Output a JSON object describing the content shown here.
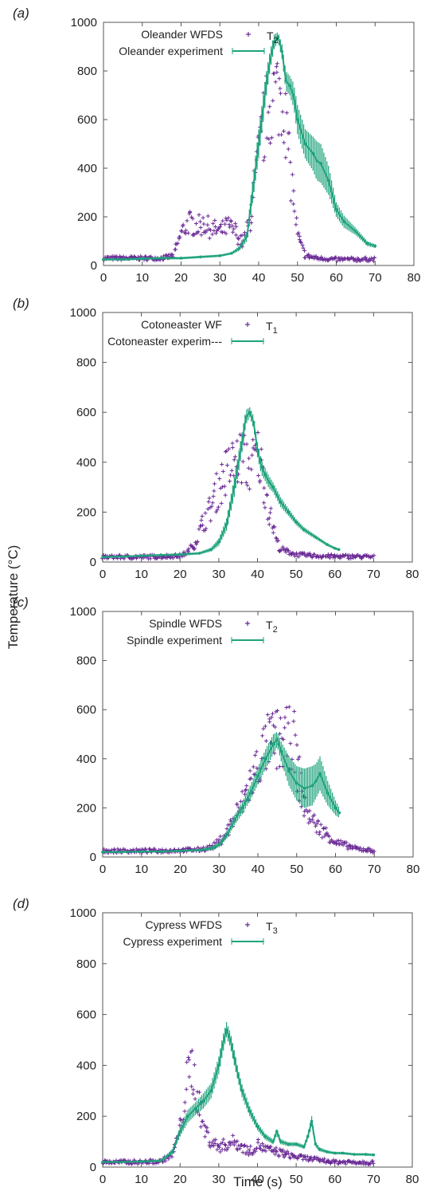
{
  "figure": {
    "ylabel": "Temperature (°C)",
    "xlabel": "Time (s)"
  },
  "colors": {
    "wfds": "#6b2a96",
    "experiment": "#1fa37c",
    "axis": "#555555"
  },
  "chart_data": [
    {
      "type": "scatter",
      "panel_label": "(a)",
      "sensor": "T",
      "sensor_sub": "2",
      "xlim": [
        0,
        80
      ],
      "ylim": [
        0,
        1000
      ],
      "xticks": [
        "0",
        "10",
        "20",
        "30",
        "40",
        "50",
        "60",
        "70",
        "80"
      ],
      "yticks": [
        "0",
        "200",
        "400",
        "600",
        "800",
        "1000"
      ],
      "series": [
        {
          "name": "Oleander WFDS",
          "style": "scatter",
          "x": [
            0,
            5,
            10,
            15,
            18,
            20,
            22,
            24,
            26,
            28,
            30,
            32,
            34,
            36,
            38,
            40,
            42,
            44,
            46,
            47,
            48,
            50,
            52,
            55,
            60,
            65,
            70
          ],
          "y": [
            30,
            30,
            30,
            30,
            40,
            130,
            180,
            160,
            170,
            150,
            140,
            160,
            140,
            90,
            200,
            450,
            620,
            710,
            710,
            600,
            420,
            120,
            40,
            30,
            25,
            25,
            25
          ]
        },
        {
          "name": "Oleander experiment",
          "style": "errorline",
          "x": [
            0,
            5,
            10,
            15,
            20,
            25,
            30,
            33,
            35,
            37,
            38,
            40,
            42,
            43,
            44,
            45,
            46,
            47,
            48,
            49,
            50,
            52,
            54,
            55,
            56,
            58,
            60,
            62,
            65,
            68,
            70
          ],
          "y": [
            25,
            25,
            28,
            30,
            30,
            35,
            40,
            50,
            70,
            120,
            250,
            500,
            750,
            850,
            920,
            940,
            880,
            760,
            740,
            700,
            600,
            500,
            460,
            430,
            420,
            350,
            230,
            180,
            140,
            90,
            80
          ],
          "err": [
            5,
            5,
            5,
            5,
            5,
            5,
            5,
            5,
            10,
            20,
            40,
            60,
            50,
            40,
            30,
            20,
            30,
            40,
            40,
            50,
            60,
            60,
            70,
            80,
            80,
            60,
            30,
            25,
            15,
            10,
            8
          ]
        }
      ]
    },
    {
      "type": "scatter",
      "panel_label": "(b)",
      "sensor": "T",
      "sensor_sub": "1",
      "xlim": [
        0,
        80
      ],
      "ylim": [
        0,
        1000
      ],
      "xticks": [
        "0",
        "10",
        "20",
        "30",
        "40",
        "50",
        "60",
        "70",
        "80"
      ],
      "yticks": [
        "0",
        "200",
        "400",
        "600",
        "800",
        "1000"
      ],
      "series": [
        {
          "name": "Cotoneaster WF",
          "style": "scatter",
          "x": [
            0,
            5,
            10,
            15,
            20,
            22,
            24,
            26,
            28,
            30,
            32,
            34,
            36,
            38,
            40,
            41,
            42,
            43,
            44,
            45,
            46,
            48,
            50,
            55,
            60,
            65,
            70
          ],
          "y": [
            20,
            20,
            20,
            22,
            25,
            40,
            80,
            160,
            220,
            300,
            360,
            400,
            420,
            380,
            430,
            370,
            300,
            200,
            150,
            80,
            50,
            40,
            30,
            25,
            22,
            22,
            20
          ]
        },
        {
          "name": "Cotoneaster experim---",
          "style": "errorline",
          "x": [
            0,
            5,
            10,
            15,
            20,
            25,
            28,
            30,
            32,
            34,
            36,
            37,
            38,
            39,
            40,
            41,
            42,
            43,
            44,
            45,
            46,
            48,
            50,
            52,
            55,
            58,
            60,
            61
          ],
          "y": [
            20,
            22,
            25,
            28,
            30,
            35,
            50,
            80,
            150,
            300,
            480,
            580,
            600,
            560,
            450,
            380,
            350,
            320,
            300,
            270,
            240,
            200,
            160,
            130,
            100,
            70,
            55,
            50
          ],
          "err": [
            4,
            4,
            4,
            4,
            5,
            5,
            8,
            15,
            25,
            40,
            40,
            30,
            20,
            25,
            30,
            30,
            25,
            25,
            20,
            20,
            20,
            15,
            12,
            10,
            8,
            6,
            5,
            5
          ]
        }
      ]
    },
    {
      "type": "scatter",
      "panel_label": "(c)",
      "sensor": "T",
      "sensor_sub": "2",
      "xlim": [
        0,
        80
      ],
      "ylim": [
        0,
        1000
      ],
      "xticks": [
        "0",
        "10",
        "20",
        "30",
        "40",
        "50",
        "60",
        "70",
        "80"
      ],
      "yticks": [
        "0",
        "200",
        "400",
        "600",
        "800",
        "1000"
      ],
      "series": [
        {
          "name": "Spindle WFDS",
          "style": "scatter",
          "x": [
            0,
            5,
            10,
            15,
            20,
            25,
            28,
            30,
            32,
            34,
            36,
            38,
            40,
            42,
            44,
            46,
            48,
            49,
            50,
            52,
            55,
            58,
            60,
            65,
            70
          ],
          "y": [
            25,
            25,
            25,
            25,
            28,
            30,
            40,
            60,
            100,
            160,
            220,
            300,
            380,
            450,
            480,
            470,
            480,
            500,
            380,
            200,
            130,
            90,
            60,
            35,
            25
          ]
        },
        {
          "name": "Spindle experiment",
          "style": "errorline",
          "x": [
            0,
            5,
            10,
            15,
            20,
            25,
            28,
            30,
            32,
            34,
            36,
            38,
            40,
            42,
            44,
            45,
            46,
            48,
            50,
            52,
            54,
            55,
            56,
            58,
            60,
            61
          ],
          "y": [
            20,
            20,
            22,
            22,
            25,
            28,
            35,
            50,
            90,
            150,
            200,
            260,
            330,
            400,
            460,
            480,
            430,
            350,
            300,
            280,
            290,
            310,
            340,
            260,
            200,
            180
          ],
          "err": [
            4,
            4,
            4,
            4,
            4,
            5,
            8,
            10,
            15,
            20,
            25,
            30,
            35,
            40,
            40,
            30,
            40,
            60,
            70,
            80,
            80,
            70,
            70,
            50,
            30,
            20
          ]
        }
      ]
    },
    {
      "type": "scatter",
      "panel_label": "(d)",
      "sensor": "T",
      "sensor_sub": "3",
      "xlim": [
        0,
        80
      ],
      "ylim": [
        0,
        1000
      ],
      "xticks": [
        "0",
        "10",
        "20",
        "30",
        "40",
        "50",
        "60",
        "70",
        "80"
      ],
      "yticks": [
        "0",
        "200",
        "400",
        "600",
        "800",
        "1000"
      ],
      "series": [
        {
          "name": "Cypress WFDS",
          "style": "scatter",
          "x": [
            0,
            5,
            10,
            15,
            18,
            20,
            21,
            22,
            23,
            24,
            25,
            26,
            28,
            30,
            32,
            34,
            36,
            38,
            40,
            42,
            45,
            50,
            55,
            60,
            65,
            70
          ],
          "y": [
            20,
            20,
            20,
            22,
            50,
            150,
            250,
            350,
            400,
            320,
            240,
            160,
            100,
            80,
            90,
            100,
            80,
            60,
            90,
            70,
            60,
            40,
            30,
            20,
            20,
            18
          ]
        },
        {
          "name": "Cypress experiment",
          "style": "errorline",
          "x": [
            0,
            5,
            10,
            15,
            18,
            20,
            22,
            24,
            26,
            28,
            30,
            31,
            32,
            33,
            34,
            35,
            36,
            38,
            40,
            42,
            44,
            45,
            46,
            48,
            50,
            52,
            53,
            54,
            55,
            56,
            58,
            60,
            62,
            65,
            68,
            70
          ],
          "y": [
            20,
            20,
            22,
            25,
            60,
            140,
            200,
            230,
            260,
            300,
            400,
            480,
            540,
            500,
            430,
            360,
            300,
            220,
            160,
            120,
            100,
            140,
            100,
            90,
            90,
            80,
            120,
            180,
            90,
            70,
            60,
            55,
            55,
            50,
            50,
            48
          ],
          "err": [
            4,
            4,
            4,
            5,
            10,
            20,
            25,
            25,
            30,
            30,
            35,
            35,
            30,
            30,
            30,
            25,
            25,
            20,
            15,
            12,
            10,
            15,
            10,
            8,
            8,
            8,
            15,
            20,
            10,
            8,
            6,
            5,
            5,
            5,
            5,
            5
          ]
        }
      ]
    }
  ]
}
